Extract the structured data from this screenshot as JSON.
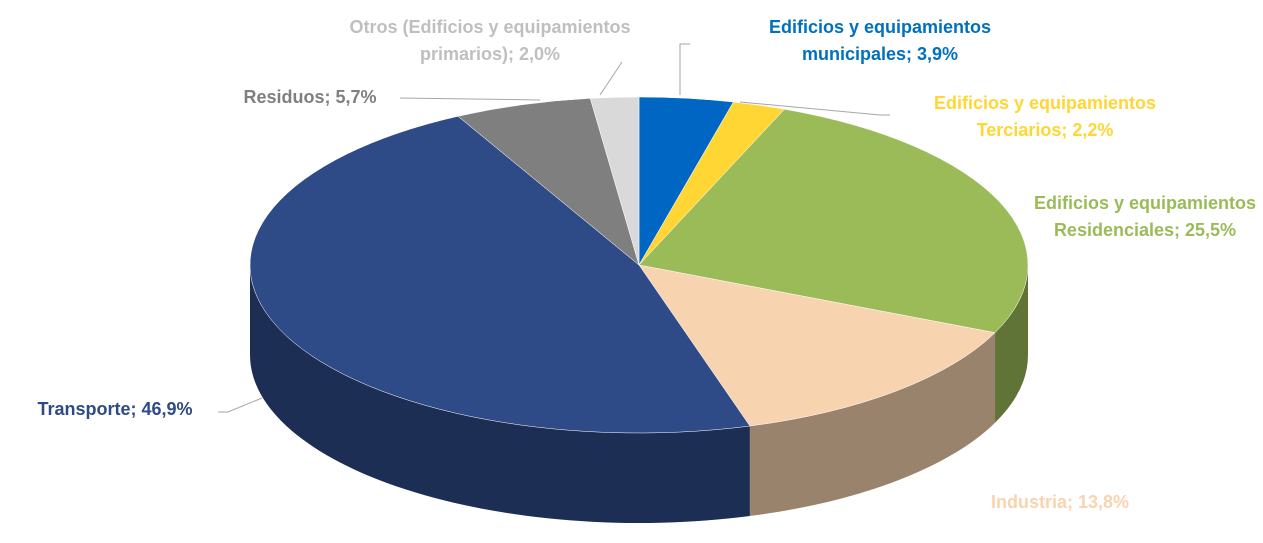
{
  "chart_data": {
    "type": "pie",
    "values": [
      3.9,
      2.2,
      25.5,
      13.8,
      46.9,
      5.7,
      2.0
    ],
    "value_labels": [
      "Edificios y equipamientos municipales; 3,9%",
      "Edificios y equipamientos Terciarios; 2,2%",
      "Edificios y equipamientos Residenciales; 25,5%",
      "Industria; 13,8%",
      "Transporte; 46,9%",
      "Residuos; 5,7%",
      "Otros (Edificios y equipamientos primarios); 2,0%"
    ],
    "colors": [
      "#0066c4",
      "#ffd633",
      "#9bbb59",
      "#f8d3b0",
      "#2e4a87",
      "#7f7f7f",
      "#d9d9d9"
    ]
  }
}
